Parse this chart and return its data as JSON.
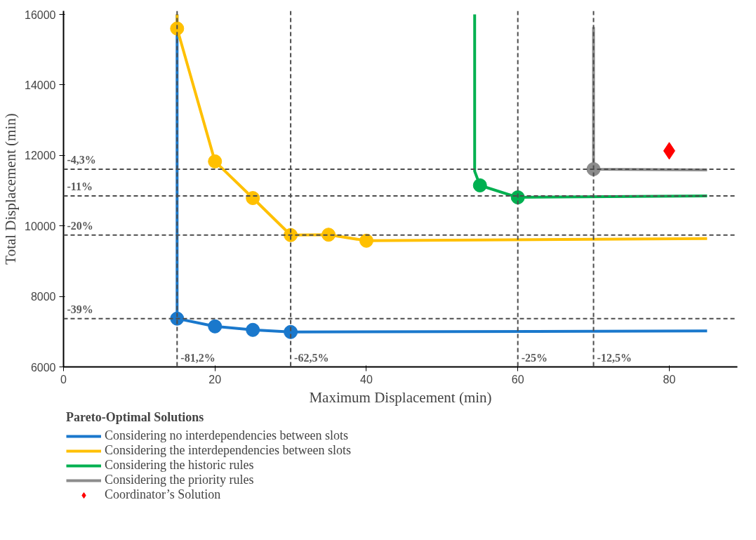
{
  "chart_data": {
    "type": "line",
    "xlabel": "Maximum Displacement (min)",
    "ylabel": "Total Displacement (min)",
    "legend_title": "Pareto-Optimal Solutions",
    "xlim": [
      0,
      89
    ],
    "ylim": [
      6000,
      16100
    ],
    "xticks": [
      0,
      20,
      40,
      60,
      80
    ],
    "yticks": [
      6000,
      8000,
      10000,
      12000,
      14000,
      16000
    ],
    "grid": false,
    "legend": "bottom",
    "series": [
      {
        "name": "Considering no interdependencies between slots",
        "marker": "none",
        "color": "#1a78cc",
        "x": [
          15,
          15,
          20,
          25,
          30,
          85
        ],
        "values": [
          16000,
          7370,
          7150,
          7050,
          6990,
          7020
        ]
      },
      {
        "name": "Considering the interdependencies between slots",
        "marker": "none",
        "color": "#ffc000",
        "x": [
          15,
          15,
          20,
          25,
          30,
          35,
          40,
          85
        ],
        "values": [
          16000,
          15600,
          11830,
          10790,
          9740,
          9750,
          9580,
          9640
        ]
      },
      {
        "name": "Considering the historic rules",
        "marker": "none",
        "color": "#00b050",
        "x": [
          54.3,
          54.3,
          55,
          60,
          85
        ],
        "values": [
          16000,
          11550,
          11150,
          10810,
          10850
        ]
      },
      {
        "name": "Considering the priority rules",
        "marker": "none",
        "color": "#8c8c8c",
        "x": [
          70,
          70,
          85
        ],
        "values": [
          15640,
          11610,
          11590
        ]
      },
      {
        "type": "scatter",
        "marker": "circle",
        "color": "#1a78cc",
        "x": [
          15,
          20,
          25,
          30
        ],
        "values": [
          7370,
          7150,
          7050,
          6990
        ]
      },
      {
        "type": "scatter",
        "marker": "circle",
        "color": "#ffc000",
        "x": [
          15,
          20,
          25,
          30,
          35,
          40
        ],
        "values": [
          15600,
          11830,
          10790,
          9740,
          9750,
          9580
        ]
      },
      {
        "type": "scatter",
        "marker": "circle",
        "color": "#00b050",
        "x": [
          55,
          60
        ],
        "values": [
          11150,
          10810
        ]
      },
      {
        "type": "scatter",
        "marker": "circle",
        "color": "#8c8c8c",
        "x": [
          70
        ],
        "values": [
          11610
        ]
      },
      {
        "name": "Coordinator’s Solution",
        "type": "scatter",
        "marker": "diamond",
        "color": "#ff0000",
        "x": [
          80
        ],
        "values": [
          12130
        ]
      }
    ],
    "ref_lines": [
      {
        "axis": "y",
        "value": 11610,
        "color": "#4d4d4d",
        "line_style": "dashed"
      },
      {
        "axis": "y",
        "value": 10850,
        "color": "#4d4d4d",
        "line_style": "dashed"
      },
      {
        "axis": "y",
        "value": 9740,
        "color": "#4d4d4d",
        "line_style": "dashed"
      },
      {
        "axis": "y",
        "value": 7370,
        "color": "#4d4d4d",
        "line_style": "dashed"
      },
      {
        "axis": "x",
        "value": 15,
        "color": "#4d4d4d",
        "line_style": "dashed"
      },
      {
        "axis": "x",
        "value": 30,
        "color": "#4d4d4d",
        "line_style": "dashed"
      },
      {
        "axis": "x",
        "value": 60,
        "color": "#4d4d4d",
        "line_style": "dashed"
      },
      {
        "axis": "x",
        "value": 70,
        "color": "#4d4d4d",
        "line_style": "dashed"
      }
    ],
    "annotations": [
      {
        "text": "-4,3%",
        "x": 0,
        "y": 11610
      },
      {
        "text": "-11%",
        "x": 0,
        "y": 10850
      },
      {
        "text": "-20%",
        "x": 0,
        "y": 9740
      },
      {
        "text": "-39%",
        "x": 0,
        "y": 7370
      },
      {
        "text": "-81,2%",
        "x": 15,
        "y": 6000
      },
      {
        "text": "-62,5%",
        "x": 30,
        "y": 6000
      },
      {
        "text": "-25%",
        "x": 60,
        "y": 6000
      },
      {
        "text": "-12,5%",
        "x": 70,
        "y": 6000
      }
    ]
  }
}
